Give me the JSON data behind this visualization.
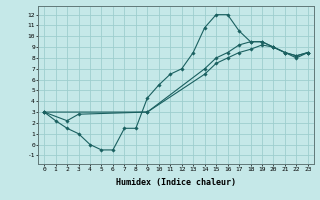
{
  "xlabel": "Humidex (Indice chaleur)",
  "background_color": "#c5e8e8",
  "grid_color": "#9ecece",
  "line_color": "#1a6060",
  "xlim": [
    -0.5,
    23.5
  ],
  "ylim": [
    -1.8,
    12.8
  ],
  "xticks": [
    0,
    1,
    2,
    3,
    4,
    5,
    6,
    7,
    8,
    9,
    10,
    11,
    12,
    13,
    14,
    15,
    16,
    17,
    18,
    19,
    20,
    21,
    22,
    23
  ],
  "yticks": [
    -1,
    0,
    1,
    2,
    3,
    4,
    5,
    6,
    7,
    8,
    9,
    10,
    11,
    12
  ],
  "line1_x": [
    0,
    1,
    2,
    3,
    4,
    5,
    6,
    7,
    8,
    9,
    10,
    11,
    12,
    13,
    14,
    15,
    16,
    17,
    18,
    19,
    20,
    21,
    22,
    23
  ],
  "line1_y": [
    3.0,
    2.2,
    1.5,
    1.0,
    0.0,
    -0.5,
    -0.5,
    1.5,
    1.5,
    4.3,
    5.5,
    6.5,
    7.0,
    8.5,
    10.8,
    12.0,
    12.0,
    10.5,
    9.5,
    9.5,
    9.0,
    8.5,
    8.0,
    8.5
  ],
  "line2_x": [
    0,
    2,
    3,
    9,
    14,
    15,
    16,
    17,
    18,
    19,
    20,
    21,
    22,
    23
  ],
  "line2_y": [
    3.0,
    2.2,
    2.8,
    3.0,
    7.0,
    8.0,
    8.5,
    9.2,
    9.5,
    9.5,
    9.0,
    8.5,
    8.2,
    8.5
  ],
  "line3_x": [
    0,
    9,
    14,
    15,
    16,
    17,
    18,
    19,
    20,
    21,
    22,
    23
  ],
  "line3_y": [
    3.0,
    3.0,
    6.5,
    7.5,
    8.0,
    8.5,
    8.8,
    9.2,
    9.0,
    8.5,
    8.2,
    8.5
  ]
}
